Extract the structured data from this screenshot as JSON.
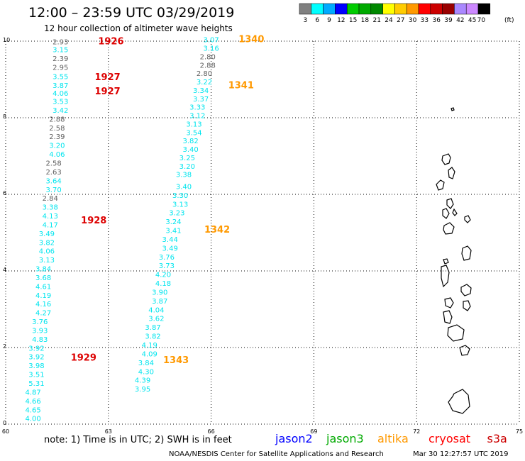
{
  "header": {
    "title": "12:00 – 23:59 UTC 03/29/2019",
    "subtitle": "12 hour collection of altimeter wave heights"
  },
  "colorbar": {
    "labels": [
      "3",
      "6",
      "9",
      "12",
      "15",
      "18",
      "21",
      "24",
      "27",
      "30",
      "33",
      "36",
      "39",
      "42",
      "45",
      "70"
    ],
    "unit": "(ft)",
    "colors": [
      "#808080",
      "#00ffff",
      "#00aaff",
      "#0000ff",
      "#00cc00",
      "#00aa00",
      "#008800",
      "#ffff00",
      "#ffcc00",
      "#ff9900",
      "#ff0000",
      "#cc0000",
      "#990000",
      "#aa88ff",
      "#cc88ff",
      "#000000"
    ]
  },
  "footer": {
    "note": "note: 1) Time is in UTC; 2) SWH is in feet",
    "credit": "NOAA/NESDIS Center for Satellite Applications and Research",
    "timestamp": "Mar 30 12:27:57 UTC 2019"
  },
  "legend": [
    {
      "name": "jason2",
      "color": "#0000ff"
    },
    {
      "name": "jason3",
      "color": "#00aa00"
    },
    {
      "name": "altika",
      "color": "#ff9900"
    },
    {
      "name": "cryosat",
      "color": "#ff0000"
    },
    {
      "name": "s3a",
      "color": "#cc0000"
    }
  ],
  "colors": {
    "gray": "#606060",
    "cyan": "#00e5ee",
    "red": "#dd0000",
    "orange": "#ff9900"
  },
  "chart_data": {
    "type": "scatter",
    "xlim": [
      60,
      75
    ],
    "ylim": [
      0,
      10
    ],
    "xticks": [
      "60",
      "63",
      "66",
      "69",
      "72",
      "75"
    ],
    "yticks": [
      "0",
      "2",
      "4",
      "6",
      "8",
      "10"
    ],
    "grid": true,
    "track_labels": [
      {
        "text": "1926",
        "x": 62.7,
        "y": 9.92,
        "color": "red"
      },
      {
        "text": "1927",
        "x": 62.6,
        "y": 8.98,
        "color": "red"
      },
      {
        "text": "1927",
        "x": 62.6,
        "y": 8.61,
        "color": "red"
      },
      {
        "text": "1928",
        "x": 62.2,
        "y": 5.24,
        "color": "red"
      },
      {
        "text": "1929",
        "x": 61.9,
        "y": 1.66,
        "color": "red"
      },
      {
        "text": "1340",
        "x": 66.8,
        "y": 9.97,
        "color": "orange"
      },
      {
        "text": "1341",
        "x": 66.5,
        "y": 8.77,
        "color": "orange"
      },
      {
        "text": "1342",
        "x": 65.8,
        "y": 5.0,
        "color": "orange"
      },
      {
        "text": "1343",
        "x": 64.6,
        "y": 1.59,
        "color": "orange"
      }
    ],
    "series": [
      {
        "satellite": "left",
        "points": [
          {
            "v": "2.93",
            "x": 61.6,
            "y": 9.92,
            "c": "gray"
          },
          {
            "v": "3.15",
            "x": 61.6,
            "y": 9.71,
            "c": "cyan"
          },
          {
            "v": "2.39",
            "x": 61.6,
            "y": 9.48,
            "c": "gray"
          },
          {
            "v": "2.95",
            "x": 61.6,
            "y": 9.25,
            "c": "gray"
          },
          {
            "v": "3.55",
            "x": 61.6,
            "y": 9.01,
            "c": "cyan"
          },
          {
            "v": "3.87",
            "x": 61.6,
            "y": 8.78,
            "c": "cyan"
          },
          {
            "v": "4.06",
            "x": 61.6,
            "y": 8.57,
            "c": "cyan"
          },
          {
            "v": "3.53",
            "x": 61.6,
            "y": 8.36,
            "c": "cyan"
          },
          {
            "v": "3.42",
            "x": 61.6,
            "y": 8.13,
            "c": "cyan"
          },
          {
            "v": "2.88",
            "x": 61.5,
            "y": 7.9,
            "c": "gray"
          },
          {
            "v": "2.58",
            "x": 61.5,
            "y": 7.67,
            "c": "gray"
          },
          {
            "v": "2.39",
            "x": 61.5,
            "y": 7.44,
            "c": "gray"
          },
          {
            "v": "3.20",
            "x": 61.5,
            "y": 7.21,
            "c": "cyan"
          },
          {
            "v": "4.06",
            "x": 61.5,
            "y": 6.98,
            "c": "cyan"
          },
          {
            "v": "2.58",
            "x": 61.4,
            "y": 6.75,
            "c": "gray"
          },
          {
            "v": "2.63",
            "x": 61.4,
            "y": 6.52,
            "c": "gray"
          },
          {
            "v": "3.64",
            "x": 61.4,
            "y": 6.29,
            "c": "cyan"
          },
          {
            "v": "3.70",
            "x": 61.4,
            "y": 6.06,
            "c": "cyan"
          },
          {
            "v": "2.84",
            "x": 61.3,
            "y": 5.83,
            "c": "gray"
          },
          {
            "v": "3.38",
            "x": 61.3,
            "y": 5.6,
            "c": "cyan"
          },
          {
            "v": "4.13",
            "x": 61.3,
            "y": 5.37,
            "c": "cyan"
          },
          {
            "v": "4.17",
            "x": 61.3,
            "y": 5.14,
            "c": "cyan"
          },
          {
            "v": "3.49",
            "x": 61.2,
            "y": 4.91,
            "c": "cyan"
          },
          {
            "v": "3.82",
            "x": 61.2,
            "y": 4.68,
            "c": "cyan"
          },
          {
            "v": "4.06",
            "x": 61.2,
            "y": 4.45,
            "c": "cyan"
          },
          {
            "v": "3.13",
            "x": 61.2,
            "y": 4.22,
            "c": "cyan"
          },
          {
            "v": "3.84",
            "x": 61.1,
            "y": 3.99,
            "c": "cyan"
          },
          {
            "v": "3.68",
            "x": 61.1,
            "y": 3.76,
            "c": "cyan"
          },
          {
            "v": "4.61",
            "x": 61.1,
            "y": 3.53,
            "c": "cyan"
          },
          {
            "v": "4.19",
            "x": 61.1,
            "y": 3.3,
            "c": "cyan"
          },
          {
            "v": "4.16",
            "x": 61.1,
            "y": 3.07,
            "c": "cyan"
          },
          {
            "v": "4.27",
            "x": 61.1,
            "y": 2.84,
            "c": "cyan"
          },
          {
            "v": "3.76",
            "x": 61.0,
            "y": 2.61,
            "c": "cyan"
          },
          {
            "v": "3.93",
            "x": 61.0,
            "y": 2.38,
            "c": "cyan"
          },
          {
            "v": "4.83",
            "x": 61.0,
            "y": 2.15,
            "c": "cyan"
          },
          {
            "v": "3.92",
            "x": 60.9,
            "y": 1.92,
            "c": "cyan"
          },
          {
            "v": "3.92",
            "x": 60.9,
            "y": 1.69,
            "c": "cyan"
          },
          {
            "v": "3.98",
            "x": 60.9,
            "y": 1.46,
            "c": "cyan"
          },
          {
            "v": "3.51",
            "x": 60.9,
            "y": 1.23,
            "c": "cyan"
          },
          {
            "v": "5.31",
            "x": 60.9,
            "y": 1.0,
            "c": "cyan"
          },
          {
            "v": "4.87",
            "x": 60.8,
            "y": 0.77,
            "c": "cyan"
          },
          {
            "v": "4.66",
            "x": 60.8,
            "y": 0.54,
            "c": "cyan"
          },
          {
            "v": "4.65",
            "x": 60.8,
            "y": 0.31,
            "c": "cyan"
          },
          {
            "v": "4.00",
            "x": 60.8,
            "y": 0.08,
            "c": "cyan"
          }
        ]
      },
      {
        "satellite": "right",
        "points": [
          {
            "v": "3.07",
            "x": 66.0,
            "y": 9.97,
            "c": "cyan"
          },
          {
            "v": "3.16",
            "x": 66.0,
            "y": 9.75,
            "c": "cyan"
          },
          {
            "v": "2.80",
            "x": 65.9,
            "y": 9.53,
            "c": "gray"
          },
          {
            "v": "2.88",
            "x": 65.9,
            "y": 9.31,
            "c": "gray"
          },
          {
            "v": "2.80",
            "x": 65.8,
            "y": 9.09,
            "c": "gray"
          },
          {
            "v": "3.22",
            "x": 65.8,
            "y": 8.87,
            "c": "cyan"
          },
          {
            "v": "3.34",
            "x": 65.7,
            "y": 8.65,
            "c": "cyan"
          },
          {
            "v": "3.37",
            "x": 65.7,
            "y": 8.43,
            "c": "cyan"
          },
          {
            "v": "3.33",
            "x": 65.6,
            "y": 8.21,
            "c": "cyan"
          },
          {
            "v": "3.12",
            "x": 65.6,
            "y": 7.99,
            "c": "cyan"
          },
          {
            "v": "3.13",
            "x": 65.5,
            "y": 7.77,
            "c": "cyan"
          },
          {
            "v": "3.54",
            "x": 65.5,
            "y": 7.55,
            "c": "cyan"
          },
          {
            "v": "3.82",
            "x": 65.4,
            "y": 7.33,
            "c": "cyan"
          },
          {
            "v": "3.40",
            "x": 65.4,
            "y": 7.11,
            "c": "cyan"
          },
          {
            "v": "3.25",
            "x": 65.3,
            "y": 6.89,
            "c": "cyan"
          },
          {
            "v": "3.20",
            "x": 65.3,
            "y": 6.67,
            "c": "cyan"
          },
          {
            "v": "3.38",
            "x": 65.2,
            "y": 6.45,
            "c": "cyan"
          },
          {
            "v": "3.40",
            "x": 65.2,
            "y": 6.14,
            "c": "cyan"
          },
          {
            "v": "3.30",
            "x": 65.1,
            "y": 5.91,
            "c": "cyan"
          },
          {
            "v": "3.13",
            "x": 65.1,
            "y": 5.68,
            "c": "cyan"
          },
          {
            "v": "3.23",
            "x": 65.0,
            "y": 5.45,
            "c": "cyan"
          },
          {
            "v": "3.24",
            "x": 64.9,
            "y": 5.22,
            "c": "cyan"
          },
          {
            "v": "3.41",
            "x": 64.9,
            "y": 4.99,
            "c": "cyan"
          },
          {
            "v": "3.44",
            "x": 64.8,
            "y": 4.76,
            "c": "cyan"
          },
          {
            "v": "3.49",
            "x": 64.8,
            "y": 4.53,
            "c": "cyan"
          },
          {
            "v": "3.76",
            "x": 64.7,
            "y": 4.3,
            "c": "cyan"
          },
          {
            "v": "3.73",
            "x": 64.7,
            "y": 4.07,
            "c": "cyan"
          },
          {
            "v": "4.20",
            "x": 64.6,
            "y": 3.84,
            "c": "cyan"
          },
          {
            "v": "4.18",
            "x": 64.6,
            "y": 3.61,
            "c": "cyan"
          },
          {
            "v": "3.90",
            "x": 64.5,
            "y": 3.38,
            "c": "cyan"
          },
          {
            "v": "3.87",
            "x": 64.5,
            "y": 3.15,
            "c": "cyan"
          },
          {
            "v": "4.04",
            "x": 64.4,
            "y": 2.92,
            "c": "cyan"
          },
          {
            "v": "3.62",
            "x": 64.4,
            "y": 2.69,
            "c": "cyan"
          },
          {
            "v": "3.87",
            "x": 64.3,
            "y": 2.46,
            "c": "cyan"
          },
          {
            "v": "3.82",
            "x": 64.3,
            "y": 2.23,
            "c": "cyan"
          },
          {
            "v": "4.19",
            "x": 64.2,
            "y": 2.0,
            "c": "cyan"
          },
          {
            "v": "4.09",
            "x": 64.2,
            "y": 1.77,
            "c": "cyan"
          },
          {
            "v": "3.84",
            "x": 64.1,
            "y": 1.54,
            "c": "cyan"
          },
          {
            "v": "4.30",
            "x": 64.1,
            "y": 1.31,
            "c": "cyan"
          },
          {
            "v": "4.39",
            "x": 64.0,
            "y": 1.08,
            "c": "cyan"
          },
          {
            "v": "3.95",
            "x": 64.0,
            "y": 0.85,
            "c": "cyan"
          }
        ]
      }
    ]
  }
}
